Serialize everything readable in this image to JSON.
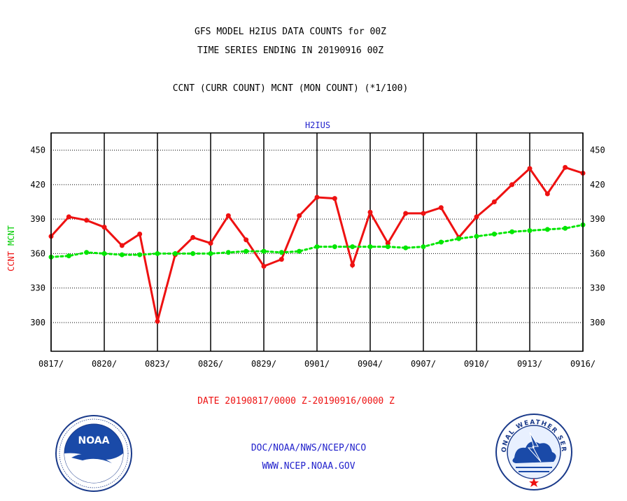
{
  "header": {
    "title_line1": "GFS MODEL H2IUS DATA COUNTS for 00Z",
    "title_line2": "TIME SERIES ENDING IN 20190916 00Z",
    "subtitle": "CCNT (CURR COUNT) MCNT (MON COUNT) (*1/100)"
  },
  "footer": {
    "date_range": "DATE 20190817/0000 Z-20190916/0000 Z",
    "credit_line1": "DOC/NOAA/NWS/NCEP/NCO",
    "credit_line2": "WWW.NCEP.NOAA.GOV",
    "logo_left": "NOAA",
    "logo_right": "NATIONAL WEATHER SERVICE"
  },
  "chart_data": {
    "type": "line",
    "title": "H2IUS",
    "ylabel_parts": [
      "CCNT",
      "MCNT"
    ],
    "xlabel": "",
    "x_tick_labels": [
      "0817/",
      "0820/",
      "0823/",
      "0826/",
      "0829/",
      "0901/",
      "0904/",
      "0907/",
      "0910/",
      "0913/",
      "0916/"
    ],
    "y_ticks": [
      300,
      330,
      360,
      390,
      420,
      450
    ],
    "ylim": [
      275,
      465
    ],
    "x": [
      "0817",
      "0818",
      "0819",
      "0820",
      "0821",
      "0822",
      "0823",
      "0824",
      "0825",
      "0826",
      "0827",
      "0828",
      "0829",
      "0830",
      "0831",
      "0901",
      "0902",
      "0903",
      "0904",
      "0905",
      "0906",
      "0907",
      "0908",
      "0909",
      "0910",
      "0911",
      "0912",
      "0913",
      "0914",
      "0915",
      "0916"
    ],
    "grid": true,
    "series": [
      {
        "name": "CCNT",
        "color": "#ee1111",
        "style": "solid",
        "values": [
          375,
          392,
          389,
          383,
          367,
          377,
          301,
          359,
          374,
          369,
          393,
          372,
          349,
          355,
          393,
          409,
          408,
          350,
          396,
          369,
          395,
          395,
          400,
          374,
          392,
          405,
          420,
          434,
          412,
          435,
          430
        ]
      },
      {
        "name": "MCNT",
        "color": "#00e600",
        "style": "dotted",
        "values": [
          357,
          358,
          361,
          360,
          359,
          359,
          360,
          360,
          360,
          360,
          361,
          362,
          362,
          361,
          362,
          366,
          366,
          366,
          366,
          366,
          365,
          366,
          370,
          373,
          375,
          377,
          379,
          380,
          381,
          382,
          385
        ]
      }
    ]
  }
}
